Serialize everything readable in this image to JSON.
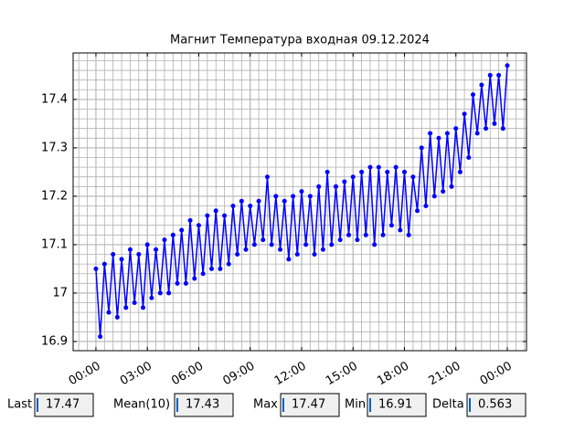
{
  "chart_data": {
    "type": "line",
    "title": "Магнит Температура входная 09.12.2024",
    "x": [
      0,
      0.25,
      0.5,
      0.75,
      1,
      1.25,
      1.5,
      1.75,
      2,
      2.25,
      2.5,
      2.75,
      3,
      3.25,
      3.5,
      3.75,
      4,
      4.25,
      4.5,
      4.75,
      5,
      5.25,
      5.5,
      5.75,
      6,
      6.25,
      6.5,
      6.75,
      7,
      7.25,
      7.5,
      7.75,
      8,
      8.25,
      8.5,
      8.75,
      9,
      9.25,
      9.5,
      9.75,
      10,
      10.25,
      10.5,
      10.75,
      11,
      11.25,
      11.5,
      11.75,
      12,
      12.25,
      12.5,
      12.75,
      13,
      13.25,
      13.5,
      13.75,
      14,
      14.25,
      14.5,
      14.75,
      15,
      15.25,
      15.5,
      15.75,
      16,
      16.25,
      16.5,
      16.75,
      17,
      17.25,
      17.5,
      17.75,
      18,
      18.25,
      18.5,
      18.75,
      19,
      19.25,
      19.5,
      19.75,
      20,
      20.25,
      20.5,
      20.75,
      21,
      21.25,
      21.5,
      21.75,
      22,
      22.25,
      22.5,
      22.75,
      23,
      23.25,
      23.5,
      23.75,
      24
    ],
    "series": [
      {
        "color": "#0000ff",
        "values": [
          17.05,
          16.91,
          17.06,
          16.96,
          17.08,
          16.95,
          17.07,
          16.97,
          17.09,
          16.98,
          17.08,
          16.97,
          17.1,
          16.99,
          17.09,
          17.0,
          17.11,
          17.0,
          17.12,
          17.02,
          17.13,
          17.02,
          17.15,
          17.03,
          17.14,
          17.04,
          17.16,
          17.05,
          17.17,
          17.05,
          17.16,
          17.06,
          17.18,
          17.08,
          17.19,
          17.09,
          17.18,
          17.1,
          17.19,
          17.11,
          17.24,
          17.1,
          17.2,
          17.09,
          17.19,
          17.07,
          17.2,
          17.08,
          17.21,
          17.1,
          17.2,
          17.08,
          17.22,
          17.09,
          17.25,
          17.1,
          17.22,
          17.11,
          17.23,
          17.12,
          17.24,
          17.11,
          17.25,
          17.12,
          17.26,
          17.1,
          17.26,
          17.12,
          17.25,
          17.14,
          17.26,
          17.13,
          17.25,
          17.12,
          17.24,
          17.17,
          17.3,
          17.18,
          17.33,
          17.2,
          17.32,
          17.21,
          17.33,
          17.22,
          17.34,
          17.25,
          17.37,
          17.28,
          17.41,
          17.33,
          17.43,
          17.34,
          17.45,
          17.35,
          17.45,
          17.34,
          17.47
        ]
      }
    ],
    "xlim": [
      -1.33,
      25.12
    ],
    "ylim": [
      16.881,
      17.496
    ],
    "xticks": [
      {
        "value": 0,
        "label": "00:00"
      },
      {
        "value": 3,
        "label": "03:00"
      },
      {
        "value": 6,
        "label": "06:00"
      },
      {
        "value": 9,
        "label": "09:00"
      },
      {
        "value": 12,
        "label": "12:00"
      },
      {
        "value": 15,
        "label": "15:00"
      },
      {
        "value": 18,
        "label": "18:00"
      },
      {
        "value": 21,
        "label": "21:00"
      },
      {
        "value": 24,
        "label": "00:00"
      }
    ],
    "yticks": [
      16.9,
      17.0,
      17.1,
      17.2,
      17.3,
      17.4
    ],
    "grid": true,
    "minor_grid": true,
    "xminor_step": 0.5,
    "yminor_step": 0.02
  },
  "stats": [
    {
      "label": "Last",
      "value": 17.47
    },
    {
      "label": "Mean(10)",
      "value": 17.43
    },
    {
      "label": "Max",
      "value": 17.47
    },
    {
      "label": "Min",
      "value": 16.91
    },
    {
      "label": "Delta",
      "value": 0.563
    }
  ]
}
